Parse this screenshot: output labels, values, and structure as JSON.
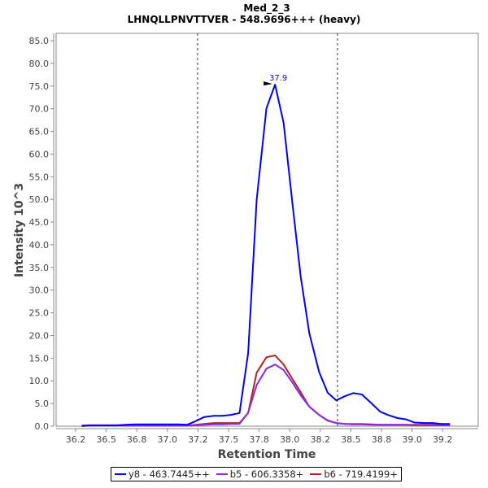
{
  "chart_data": {
    "type": "line",
    "title": "Med_2_3",
    "subtitle": "LHNQLLPNVTTVER - 548.9696+++ (heavy)",
    "xlabel": "Retention Time",
    "ylabel": "Intensity 10^3",
    "xlim": [
      36.1,
      39.5
    ],
    "ylim": [
      0,
      86.5
    ],
    "xticks": [
      36.25,
      36.5,
      36.75,
      37.0,
      37.25,
      37.5,
      37.75,
      38.0,
      38.25,
      38.5,
      38.75,
      39.0,
      39.25
    ],
    "xtick_labels": [
      "36.2",
      "36.5",
      "36.8",
      "37.0",
      "37.2",
      "37.5",
      "37.8",
      "38.0",
      "38.2",
      "38.5",
      "38.8",
      "39.0",
      "39.2"
    ],
    "yticks": [
      0,
      5,
      10,
      15,
      20,
      25,
      30,
      35,
      40,
      45,
      50,
      55,
      60,
      65,
      70,
      75,
      80,
      85
    ],
    "ytick_labels": [
      "0.0",
      "5.0",
      "10.0",
      "15.0",
      "20.0",
      "25.0",
      "30.0",
      "35.0",
      "40.0",
      "45.0",
      "50.0",
      "55.0",
      "60.0",
      "65.0",
      "70.0",
      "75.0",
      "80.0",
      "85.0"
    ],
    "x": [
      36.3,
      36.37,
      36.44,
      36.52,
      36.59,
      36.66,
      36.73,
      36.8,
      36.87,
      36.95,
      37.02,
      37.09,
      37.16,
      37.23,
      37.3,
      37.38,
      37.45,
      37.52,
      37.59,
      37.66,
      37.73,
      37.81,
      37.88,
      37.95,
      38.02,
      38.09,
      38.16,
      38.24,
      38.31,
      38.38,
      38.45,
      38.52,
      38.59,
      38.67,
      38.74,
      38.81,
      38.88,
      38.95,
      39.02,
      39.1,
      39.17,
      39.24,
      39.31
    ],
    "series": [
      {
        "name": "y8 - 463.7445++",
        "color": "#0000ff",
        "values": [
          0.1,
          0.2,
          0.2,
          0.2,
          0.2,
          0.3,
          0.4,
          0.4,
          0.4,
          0.4,
          0.4,
          0.4,
          0.3,
          1.1,
          2.0,
          2.3,
          2.3,
          2.5,
          2.9,
          16.1,
          50.0,
          70.1,
          75.3,
          66.9,
          49.7,
          33.0,
          20.5,
          12.0,
          7.4,
          5.7,
          6.6,
          7.3,
          7.0,
          5.0,
          3.2,
          2.4,
          1.8,
          1.5,
          0.8,
          0.7,
          0.7,
          0.5,
          0.5
        ]
      },
      {
        "name": "b5 - 606.3358+",
        "color": "#8a2be2",
        "values": [
          0.1,
          0.1,
          0.1,
          0.1,
          0.1,
          0.1,
          0.1,
          0.1,
          0.1,
          0.1,
          0.1,
          0.1,
          0.1,
          0.2,
          0.3,
          0.4,
          0.4,
          0.5,
          0.5,
          3.0,
          9.1,
          12.7,
          13.6,
          12.4,
          9.7,
          6.8,
          4.3,
          2.5,
          1.2,
          0.7,
          0.5,
          0.5,
          0.5,
          0.4,
          0.3,
          0.3,
          0.3,
          0.3,
          0.2,
          0.2,
          0.2,
          0.2,
          0.2
        ]
      },
      {
        "name": "b6 - 719.4199+",
        "color": "#b22222",
        "values": [
          0.0,
          0.1,
          0.1,
          0.1,
          0.1,
          0.1,
          0.1,
          0.1,
          0.1,
          0.1,
          0.1,
          0.1,
          0.1,
          0.3,
          0.5,
          0.7,
          0.7,
          0.7,
          0.7,
          2.9,
          11.8,
          15.2,
          15.6,
          13.6,
          10.5,
          7.5,
          4.3,
          2.5,
          1.3,
          0.7,
          0.5,
          0.4,
          0.4,
          0.3,
          0.3,
          0.3,
          0.3,
          0.3,
          0.3,
          0.3,
          0.3,
          0.3,
          0.3
        ]
      }
    ],
    "integration_boundaries": [
      37.247,
      38.391
    ],
    "annotations": [
      {
        "x": 37.88,
        "y": 75.3,
        "text": "37.9",
        "color": "#0000ff"
      }
    ],
    "legend": "bottom",
    "grid": false
  }
}
